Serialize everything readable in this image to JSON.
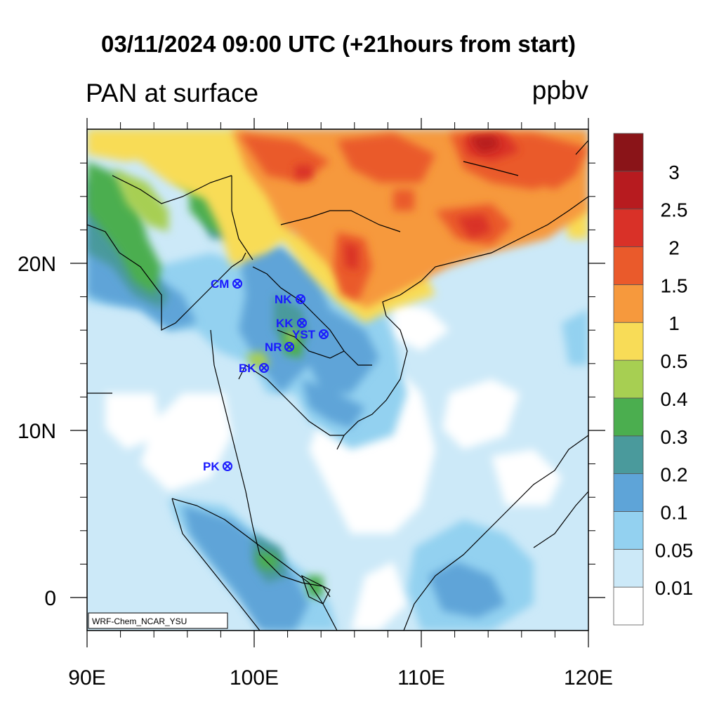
{
  "title": "03/11/2024 09:00 UTC (+21hours from start)",
  "variable_label": "PAN at surface",
  "units_label": "ppbv",
  "credit": "WRF-Chem_NCAR_YSU",
  "x_ticks": [
    "90E",
    "100E",
    "110E",
    "120E"
  ],
  "y_ticks": [
    "0",
    "10N",
    "20N"
  ],
  "colorbar": {
    "labels": [
      "0.01",
      "0.05",
      "0.1",
      "0.2",
      "0.3",
      "0.4",
      "0.5",
      "1",
      "1.5",
      "2",
      "2.5",
      "3"
    ],
    "colors": [
      "#ffffff",
      "#cce9f8",
      "#93d1f0",
      "#5ea4d8",
      "#4a9a9c",
      "#4bae4f",
      "#a7cf52",
      "#f8dc57",
      "#f6993d",
      "#ea5a2b",
      "#d93128",
      "#b71b1f",
      "#8a1418"
    ]
  },
  "stations": [
    {
      "name": "CM"
    },
    {
      "name": "NK"
    },
    {
      "name": "KK"
    },
    {
      "name": "YST"
    },
    {
      "name": "NR"
    },
    {
      "name": "BK"
    },
    {
      "name": "PK"
    }
  ]
}
